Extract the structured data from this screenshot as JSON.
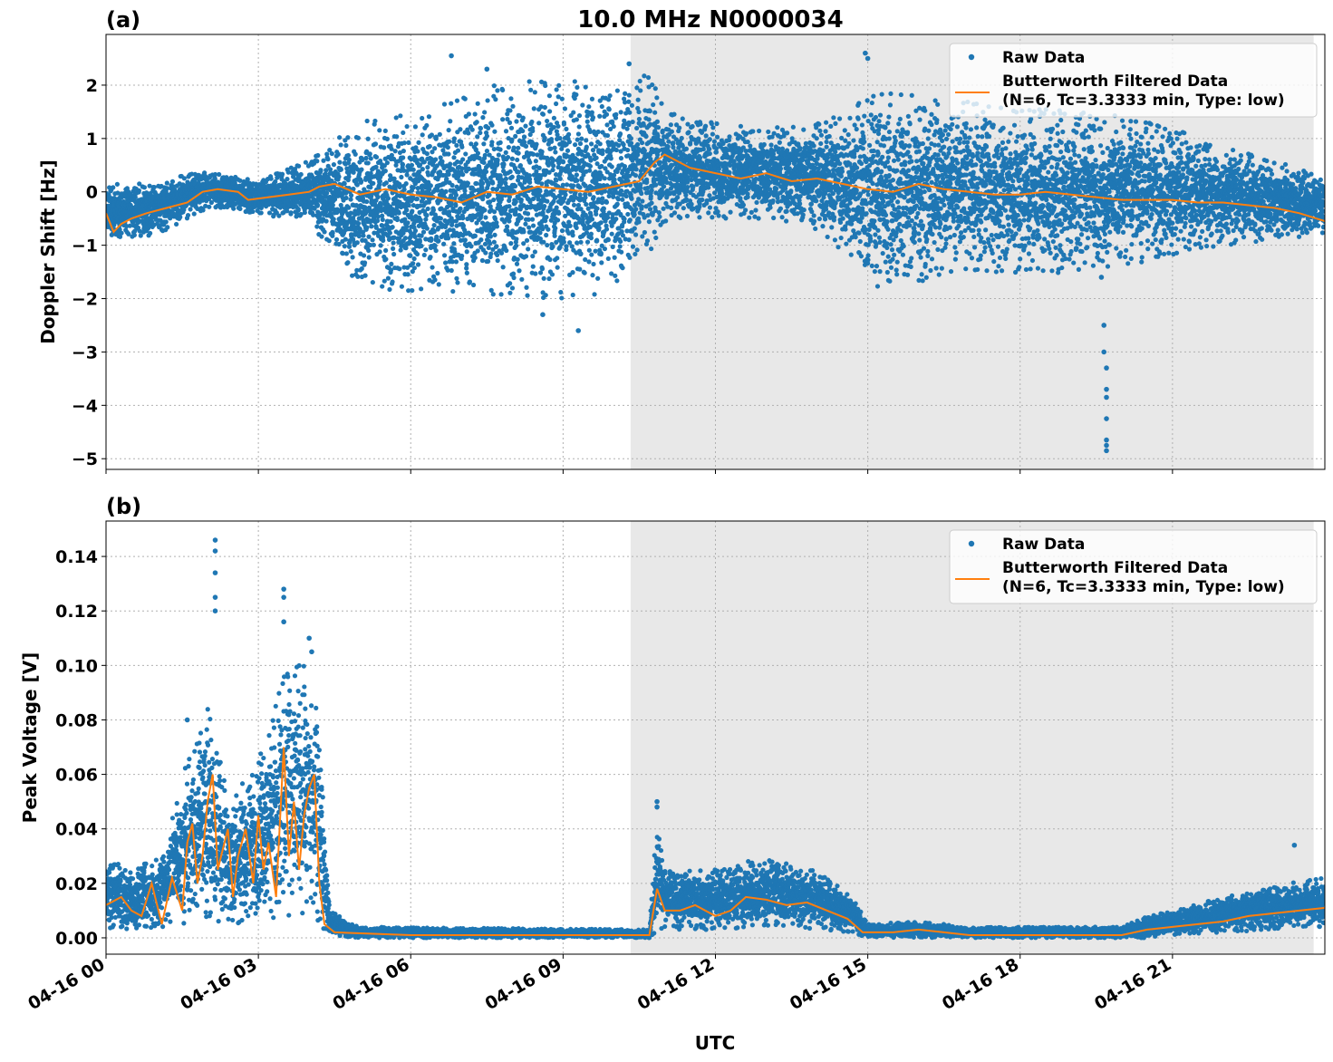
{
  "chart_data": {
    "type": "scatter",
    "title": "10.0 MHz N0000034",
    "xlabel": "UTC",
    "x_ticks": [
      "04-16 00",
      "04-16 03",
      "04-16 06",
      "04-16 09",
      "04-16 12",
      "04-16 15",
      "04-16 18",
      "04-16 21"
    ],
    "x_tick_hours": [
      0,
      3,
      6,
      9,
      12,
      15,
      18,
      21
    ],
    "xlim_hours": [
      0,
      24
    ],
    "shaded_range_hours": [
      10.33,
      23.78
    ],
    "grid": true,
    "legend_placement": "top-right",
    "legend": {
      "raw": "Raw Data",
      "filtered_line1": "Butterworth Filtered Data",
      "filtered_line2": "(N=6, Tc=3.3333 min, Type: low)"
    },
    "colors": {
      "raw": "#1f77b4",
      "filtered": "#ff7f0e",
      "shade": "#e8e8e8",
      "grid": "#b0b0b0"
    },
    "panels": [
      {
        "label": "(a)",
        "ylabel": "Doppler Shift [Hz]",
        "ylim": [
          -5.2,
          2.95
        ],
        "y_ticks": [
          "−5",
          "−4",
          "−3",
          "−2",
          "−1",
          "0",
          "1",
          "2"
        ],
        "y_tick_values": [
          -5,
          -4,
          -3,
          -2,
          -1,
          0,
          1,
          2
        ],
        "series": [
          {
            "name": "Butterworth Filtered Data",
            "points": [
              [
                0,
                -0.4
              ],
              [
                0.15,
                -0.75
              ],
              [
                0.3,
                -0.6
              ],
              [
                0.5,
                -0.5
              ],
              [
                0.8,
                -0.4
              ],
              [
                1.2,
                -0.3
              ],
              [
                1.6,
                -0.2
              ],
              [
                1.9,
                0.0
              ],
              [
                2.2,
                0.05
              ],
              [
                2.6,
                0.0
              ],
              [
                2.8,
                -0.15
              ],
              [
                3.2,
                -0.1
              ],
              [
                3.6,
                -0.05
              ],
              [
                4.0,
                0.0
              ],
              [
                4.2,
                0.1
              ],
              [
                4.5,
                0.15
              ],
              [
                5.0,
                -0.05
              ],
              [
                5.5,
                0.05
              ],
              [
                6.0,
                -0.05
              ],
              [
                6.5,
                -0.1
              ],
              [
                7.0,
                -0.2
              ],
              [
                7.5,
                0.0
              ],
              [
                8.0,
                -0.05
              ],
              [
                8.5,
                0.1
              ],
              [
                9.0,
                0.05
              ],
              [
                9.5,
                0.0
              ],
              [
                10.0,
                0.1
              ],
              [
                10.5,
                0.2
              ],
              [
                10.8,
                0.55
              ],
              [
                11.0,
                0.7
              ],
              [
                11.5,
                0.45
              ],
              [
                12.0,
                0.35
              ],
              [
                12.5,
                0.25
              ],
              [
                13.0,
                0.35
              ],
              [
                13.5,
                0.2
              ],
              [
                14.0,
                0.25
              ],
              [
                14.5,
                0.15
              ],
              [
                15.0,
                0.05
              ],
              [
                15.5,
                0.0
              ],
              [
                16.0,
                0.15
              ],
              [
                16.5,
                0.05
              ],
              [
                17.0,
                0.0
              ],
              [
                17.5,
                -0.05
              ],
              [
                18.0,
                -0.05
              ],
              [
                18.5,
                0.0
              ],
              [
                19.0,
                -0.05
              ],
              [
                19.5,
                -0.1
              ],
              [
                20.0,
                -0.15
              ],
              [
                20.5,
                -0.15
              ],
              [
                21.0,
                -0.15
              ],
              [
                21.5,
                -0.2
              ],
              [
                22.0,
                -0.2
              ],
              [
                22.5,
                -0.25
              ],
              [
                23.0,
                -0.3
              ],
              [
                23.5,
                -0.4
              ],
              [
                24.0,
                -0.55
              ]
            ]
          }
        ],
        "raw_envelope": [
          [
            0,
            -0.95,
            0.15
          ],
          [
            1,
            -0.8,
            0.2
          ],
          [
            2,
            -0.3,
            0.4
          ],
          [
            3,
            -0.4,
            0.2
          ],
          [
            4,
            -0.6,
            0.6
          ],
          [
            4.5,
            -1.2,
            1.0
          ],
          [
            5,
            -1.8,
            1.3
          ],
          [
            6,
            -1.9,
            1.5
          ],
          [
            7,
            -1.9,
            1.8
          ],
          [
            8,
            -2.0,
            2.1
          ],
          [
            9,
            -2.0,
            2.1
          ],
          [
            10,
            -1.9,
            2.1
          ],
          [
            10.8,
            -1.0,
            2.2
          ],
          [
            11,
            -0.6,
            1.5
          ],
          [
            12,
            -0.5,
            1.3
          ],
          [
            13,
            -0.5,
            1.2
          ],
          [
            14,
            -0.7,
            1.3
          ],
          [
            14.7,
            -1.3,
            1.5
          ],
          [
            15,
            -1.8,
            1.9
          ],
          [
            16,
            -1.7,
            1.8
          ],
          [
            17,
            -1.5,
            1.7
          ],
          [
            18,
            -1.6,
            1.6
          ],
          [
            19,
            -1.5,
            1.6
          ],
          [
            20,
            -1.4,
            1.5
          ],
          [
            21,
            -1.2,
            1.2
          ],
          [
            22,
            -1.0,
            0.9
          ],
          [
            23,
            -0.9,
            0.6
          ],
          [
            24,
            -0.8,
            0.3
          ]
        ],
        "outliers": [
          [
            6.8,
            2.55
          ],
          [
            7.5,
            2.3
          ],
          [
            10.3,
            2.4
          ],
          [
            14.95,
            2.6
          ],
          [
            15.0,
            2.5
          ],
          [
            9.3,
            -2.6
          ],
          [
            8.6,
            -2.3
          ],
          [
            19.6,
            -1.6
          ],
          [
            19.65,
            -2.5
          ],
          [
            19.65,
            -3.0
          ],
          [
            19.7,
            -3.3
          ],
          [
            19.7,
            -3.7
          ],
          [
            19.7,
            -3.85
          ],
          [
            19.7,
            -4.25
          ],
          [
            19.7,
            -4.65
          ],
          [
            19.7,
            -4.75
          ],
          [
            19.7,
            -4.85
          ]
        ]
      },
      {
        "label": "(b)",
        "ylabel": "Peak Voltage [V]",
        "ylim": [
          -0.006,
          0.153
        ],
        "y_ticks": [
          "0.00",
          "0.02",
          "0.04",
          "0.06",
          "0.08",
          "0.10",
          "0.12",
          "0.14"
        ],
        "y_tick_values": [
          0,
          0.02,
          0.04,
          0.06,
          0.08,
          0.1,
          0.12,
          0.14
        ],
        "series": [
          {
            "name": "Butterworth Filtered Data",
            "points": [
              [
                0,
                0.012
              ],
              [
                0.3,
                0.015
              ],
              [
                0.5,
                0.01
              ],
              [
                0.7,
                0.008
              ],
              [
                0.9,
                0.02
              ],
              [
                1.1,
                0.005
              ],
              [
                1.3,
                0.022
              ],
              [
                1.5,
                0.01
              ],
              [
                1.6,
                0.035
              ],
              [
                1.7,
                0.042
              ],
              [
                1.8,
                0.02
              ],
              [
                1.9,
                0.03
              ],
              [
                2.0,
                0.05
              ],
              [
                2.1,
                0.06
              ],
              [
                2.2,
                0.025
              ],
              [
                2.4,
                0.04
              ],
              [
                2.5,
                0.015
              ],
              [
                2.6,
                0.03
              ],
              [
                2.75,
                0.04
              ],
              [
                2.9,
                0.02
              ],
              [
                3.0,
                0.045
              ],
              [
                3.1,
                0.025
              ],
              [
                3.2,
                0.035
              ],
              [
                3.35,
                0.015
              ],
              [
                3.5,
                0.07
              ],
              [
                3.6,
                0.03
              ],
              [
                3.7,
                0.05
              ],
              [
                3.8,
                0.025
              ],
              [
                3.9,
                0.045
              ],
              [
                4.0,
                0.055
              ],
              [
                4.1,
                0.06
              ],
              [
                4.2,
                0.02
              ],
              [
                4.3,
                0.005
              ],
              [
                4.5,
                0.002
              ],
              [
                6,
                0.001
              ],
              [
                8,
                0.001
              ],
              [
                10,
                0.001
              ],
              [
                10.7,
                0.001
              ],
              [
                10.85,
                0.018
              ],
              [
                11.0,
                0.01
              ],
              [
                11.3,
                0.01
              ],
              [
                11.6,
                0.012
              ],
              [
                12.0,
                0.008
              ],
              [
                12.3,
                0.01
              ],
              [
                12.6,
                0.015
              ],
              [
                13.0,
                0.014
              ],
              [
                13.4,
                0.012
              ],
              [
                13.8,
                0.013
              ],
              [
                14.2,
                0.01
              ],
              [
                14.6,
                0.007
              ],
              [
                14.9,
                0.002
              ],
              [
                15.5,
                0.002
              ],
              [
                16.0,
                0.003
              ],
              [
                16.5,
                0.002
              ],
              [
                17,
                0.001
              ],
              [
                19,
                0.001
              ],
              [
                20,
                0.001
              ],
              [
                20.5,
                0.003
              ],
              [
                21,
                0.004
              ],
              [
                21.5,
                0.005
              ],
              [
                22,
                0.006
              ],
              [
                22.5,
                0.008
              ],
              [
                23,
                0.009
              ],
              [
                23.5,
                0.01
              ],
              [
                24,
                0.011
              ]
            ]
          }
        ],
        "raw_envelope": [
          [
            0,
            0.003,
            0.03
          ],
          [
            0.5,
            0.003,
            0.025
          ],
          [
            1,
            0.003,
            0.03
          ],
          [
            1.5,
            0.005,
            0.06
          ],
          [
            2,
            0.005,
            0.085
          ],
          [
            2.5,
            0.005,
            0.05
          ],
          [
            3,
            0.005,
            0.07
          ],
          [
            3.5,
            0.005,
            0.1
          ],
          [
            4,
            0.01,
            0.1
          ],
          [
            4.2,
            0.005,
            0.08
          ],
          [
            4.4,
            0.001,
            0.01
          ],
          [
            5,
            0.0,
            0.004
          ],
          [
            10.7,
            0.0,
            0.003
          ],
          [
            10.85,
            0.002,
            0.045
          ],
          [
            11,
            0.003,
            0.025
          ],
          [
            12,
            0.003,
            0.025
          ],
          [
            13,
            0.004,
            0.03
          ],
          [
            14,
            0.003,
            0.025
          ],
          [
            14.7,
            0.002,
            0.015
          ],
          [
            15,
            0.0,
            0.005
          ],
          [
            16,
            0.0,
            0.006
          ],
          [
            17,
            0.0,
            0.004
          ],
          [
            20,
            0.0,
            0.004
          ],
          [
            20.5,
            0.0,
            0.008
          ],
          [
            21,
            0.001,
            0.01
          ],
          [
            22,
            0.002,
            0.015
          ],
          [
            23,
            0.003,
            0.02
          ],
          [
            24,
            0.004,
            0.022
          ]
        ],
        "outliers": [
          [
            2.15,
            0.146
          ],
          [
            2.15,
            0.142
          ],
          [
            2.15,
            0.134
          ],
          [
            2.15,
            0.125
          ],
          [
            2.15,
            0.12
          ],
          [
            3.5,
            0.128
          ],
          [
            3.5,
            0.125
          ],
          [
            3.5,
            0.116
          ],
          [
            4.0,
            0.11
          ],
          [
            4.05,
            0.105
          ],
          [
            1.6,
            0.08
          ],
          [
            10.85,
            0.05
          ],
          [
            10.85,
            0.048
          ],
          [
            23.4,
            0.034
          ]
        ]
      }
    ]
  }
}
